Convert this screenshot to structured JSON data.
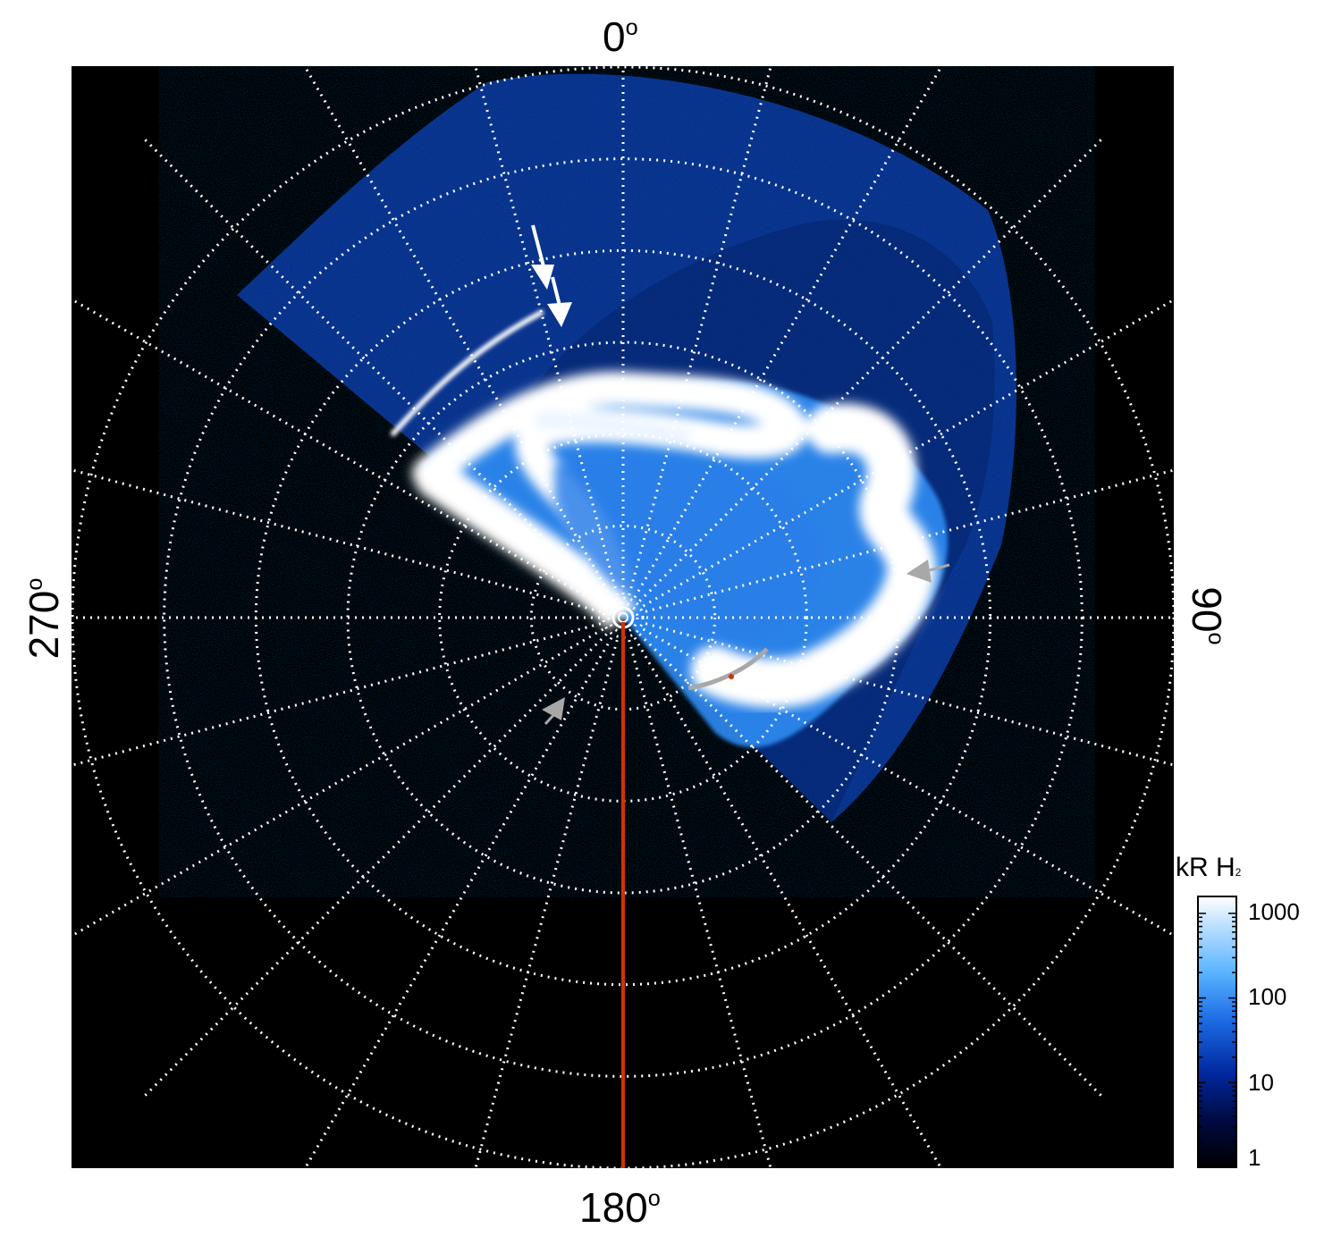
{
  "plot": {
    "label_top": "0",
    "label_right": "90",
    "label_bottom": "180",
    "label_left": "270",
    "degree_symbol": "o"
  },
  "colorbar": {
    "title": "kR H",
    "title_subscript": "2",
    "ticks": [
      "1000",
      "100",
      "10",
      "1"
    ],
    "colors": [
      "#000000",
      "#000a40",
      "#0028a0",
      "#1e6ee6",
      "#5ab4ff",
      "#b4dcff",
      "#ffffff"
    ]
  },
  "annotations": {
    "white_arrow_color": "#ffffff",
    "gray_arrow_color": "#a8a8a8",
    "meridian_line_color": "#d23200"
  }
}
